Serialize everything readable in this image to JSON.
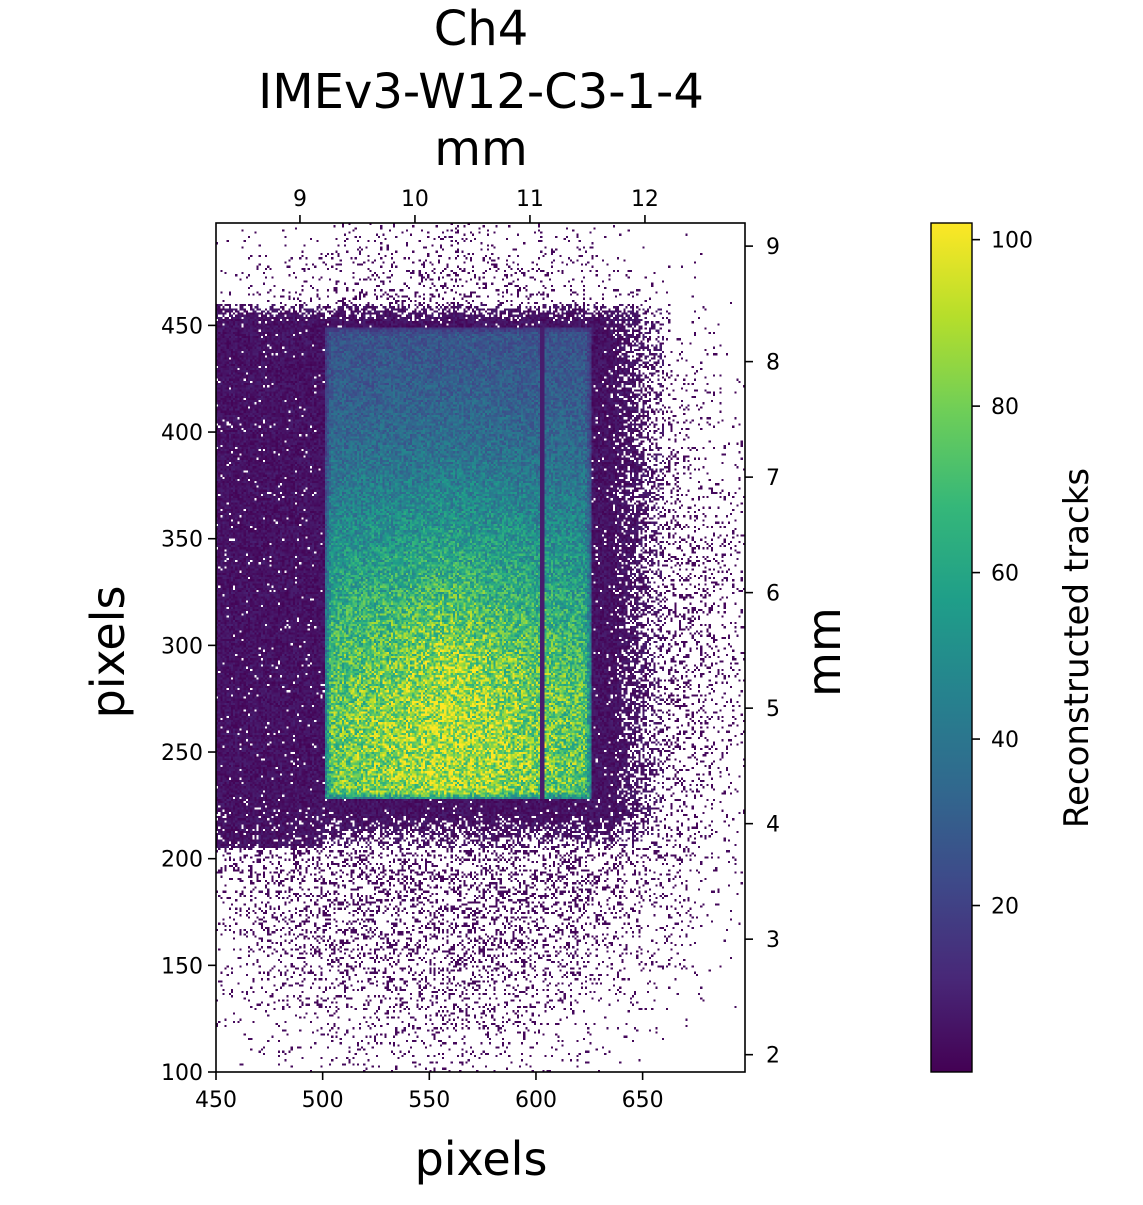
{
  "chart_data": {
    "type": "heatmap",
    "title_lines": [
      "Ch4",
      "IMEv3-W12-C3-1-4",
      "mm"
    ],
    "xlabel": "pixels",
    "ylabel": "pixels",
    "secondary_ylabel": "mm",
    "colorbar_label": "Reconstructed tracks",
    "colormap": "viridis",
    "colormap_stops": [
      "#440154",
      "#482878",
      "#3e4989",
      "#31688e",
      "#26828e",
      "#1f9e89",
      "#35b779",
      "#6ece58",
      "#b5de2b",
      "#fde725"
    ],
    "xlim": [
      450,
      698
    ],
    "ylim": [
      100,
      498
    ],
    "x_ticks": [
      450,
      500,
      550,
      600,
      650
    ],
    "x_tick_labels": [
      "450",
      "500",
      "550",
      "600",
      "650"
    ],
    "y_ticks": [
      100,
      150,
      200,
      250,
      300,
      350,
      400,
      450
    ],
    "y_tick_labels": [
      "100",
      "150",
      "200",
      "250",
      "300",
      "350",
      "400",
      "450"
    ],
    "top_mm_ticks": [
      9,
      10,
      11,
      12
    ],
    "top_mm_tick_labels": [
      "9",
      "10",
      "11",
      "12"
    ],
    "top_mm_lim": [
      8.27,
      12.87
    ],
    "right_mm_ticks": [
      2,
      3,
      4,
      5,
      6,
      7,
      8,
      9
    ],
    "right_mm_tick_labels": [
      "2",
      "3",
      "4",
      "5",
      "6",
      "7",
      "8",
      "9"
    ],
    "right_mm_lim": [
      1.85,
      9.2
    ],
    "colorbar_range": [
      0,
      102
    ],
    "colorbar_ticks": [
      20,
      40,
      60,
      80,
      100
    ],
    "colorbar_tick_labels": [
      "20",
      "40",
      "60",
      "80",
      "100"
    ],
    "sensor_region": {
      "x": [
        501,
        626
      ],
      "y": [
        228,
        449
      ],
      "peak_counts": 95,
      "peak_center": [
        560,
        260
      ]
    },
    "dead_column_x": 603,
    "halo_region": {
      "x": [
        450,
        660
      ],
      "y": [
        205,
        460
      ],
      "counts": 6
    }
  }
}
